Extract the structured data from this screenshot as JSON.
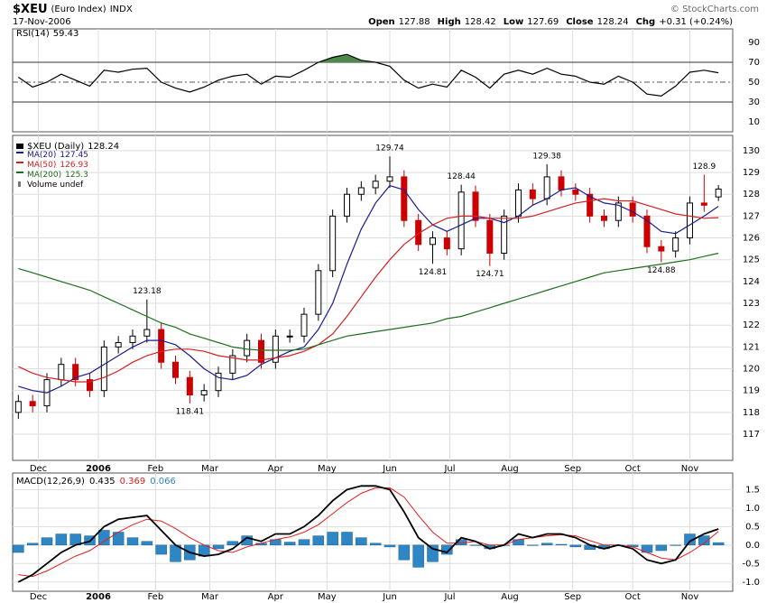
{
  "chart_data": {
    "type": "candlestick",
    "symbol": "$XEU",
    "description": "(Euro Index)",
    "exchange": "INDX",
    "date": "17-Nov-2006",
    "source": "© StockCharts.com",
    "quote_labels": [
      "Open",
      "High",
      "Low",
      "Close",
      "Chg"
    ],
    "change": "+0.31 (+0.24%)",
    "price_name": "$XEU (Daily)",
    "volume_label": "Volume undef",
    "grid": true,
    "x": [
      2,
      7,
      12,
      17,
      22,
      27,
      32,
      37,
      42,
      47,
      52,
      57,
      62,
      67,
      72,
      77,
      82,
      87,
      92,
      97,
      102,
      107,
      112,
      117,
      122,
      127,
      132,
      137,
      142,
      147,
      152,
      157,
      162,
      167,
      172,
      177,
      182,
      187,
      192,
      197,
      202,
      207,
      212,
      217,
      222,
      227,
      232,
      237,
      242,
      247
    ],
    "xlim": [
      0,
      252
    ],
    "xticks": [
      {
        "value": 9,
        "label": "Dec"
      },
      {
        "value": 30,
        "label": "2006"
      },
      {
        "value": 50,
        "label": "Feb"
      },
      {
        "value": 69,
        "label": "Mar"
      },
      {
        "value": 92,
        "label": "Apr"
      },
      {
        "value": 110,
        "label": "May"
      },
      {
        "value": 132,
        "label": "Jun"
      },
      {
        "value": 153,
        "label": "Jul"
      },
      {
        "value": 174,
        "label": "Aug"
      },
      {
        "value": 196,
        "label": "Sep"
      },
      {
        "value": 217,
        "label": "Oct"
      },
      {
        "value": 237,
        "label": "Nov"
      }
    ],
    "open": [
      118.0,
      118.5,
      118.3,
      119.5,
      120.2,
      119.5,
      119.0,
      121.0,
      121.2,
      121.5,
      121.8,
      120.3,
      119.6,
      118.8,
      119.0,
      119.8,
      120.6,
      121.3,
      120.3,
      121.5,
      121.5,
      122.5,
      124.5,
      127.0,
      128.0,
      128.3,
      128.6,
      128.8,
      126.8,
      125.7,
      126.0,
      125.5,
      128.1,
      126.8,
      125.3,
      127.0,
      128.2,
      127.8,
      128.8,
      128.2,
      128.0,
      127.0,
      126.8,
      127.6,
      127.0,
      125.6,
      125.4,
      126.0,
      127.6,
      127.88
    ],
    "high": [
      118.8,
      118.8,
      119.8,
      120.5,
      120.5,
      119.8,
      121.3,
      121.5,
      121.8,
      123.18,
      122.1,
      120.6,
      119.9,
      119.3,
      120.1,
      120.9,
      121.6,
      121.6,
      121.8,
      121.8,
      122.8,
      124.8,
      127.3,
      128.3,
      128.6,
      128.9,
      129.74,
      129.1,
      127.1,
      126.3,
      126.3,
      128.44,
      128.4,
      127.1,
      127.3,
      128.5,
      128.5,
      129.38,
      129.1,
      128.5,
      128.3,
      127.3,
      127.9,
      127.9,
      127.3,
      125.9,
      126.3,
      127.9,
      128.9,
      128.42
    ],
    "low": [
      117.7,
      118.0,
      118.0,
      119.2,
      119.2,
      118.7,
      118.7,
      120.7,
      120.9,
      121.2,
      120.0,
      119.3,
      118.41,
      118.5,
      118.7,
      119.5,
      120.3,
      120.0,
      120.0,
      121.2,
      121.2,
      122.2,
      124.2,
      126.7,
      127.7,
      128.0,
      128.3,
      126.5,
      125.4,
      124.81,
      125.2,
      125.2,
      126.5,
      124.71,
      125.0,
      126.7,
      127.5,
      127.5,
      127.9,
      127.7,
      126.7,
      126.5,
      126.5,
      126.7,
      125.3,
      124.88,
      125.1,
      125.7,
      127.2,
      127.69
    ],
    "close": [
      118.5,
      118.3,
      119.5,
      120.2,
      119.5,
      119.0,
      121.0,
      121.2,
      121.5,
      121.8,
      120.3,
      119.6,
      118.8,
      119.0,
      119.8,
      120.6,
      121.3,
      120.3,
      121.5,
      121.5,
      122.5,
      124.5,
      127.0,
      128.0,
      128.3,
      128.6,
      128.8,
      126.8,
      125.7,
      126.0,
      125.5,
      128.1,
      126.8,
      125.3,
      127.0,
      128.2,
      127.8,
      128.8,
      128.2,
      128.0,
      127.0,
      126.8,
      127.6,
      127.0,
      125.6,
      125.4,
      126.0,
      127.6,
      127.5,
      128.24
    ],
    "ylim": [
      115.8,
      130.7
    ],
    "yticks": [
      117,
      118,
      119,
      120,
      121,
      122,
      123,
      124,
      125,
      126,
      127,
      128,
      129,
      130
    ],
    "series": [
      {
        "name": "MA(20)",
        "color": "#1a1a8c",
        "values": [
          119.2,
          119.0,
          118.9,
          119.2,
          119.6,
          119.8,
          120.2,
          120.6,
          121.0,
          121.3,
          121.3,
          121.1,
          120.6,
          120.0,
          119.6,
          119.5,
          119.7,
          120.2,
          120.5,
          120.8,
          121.0,
          121.8,
          123.0,
          124.8,
          126.4,
          127.6,
          128.4,
          128.2,
          127.3,
          126.6,
          126.3,
          126.6,
          126.9,
          126.9,
          126.7,
          127.0,
          127.5,
          127.8,
          128.2,
          128.3,
          127.9,
          127.6,
          127.5,
          127.2,
          126.8,
          126.3,
          126.2,
          126.6,
          127.0,
          127.45
        ]
      },
      {
        "name": "MA(50)",
        "color": "#d42020",
        "values": [
          120.1,
          119.8,
          119.6,
          119.5,
          119.4,
          119.4,
          119.6,
          119.9,
          120.3,
          120.6,
          120.8,
          120.9,
          120.9,
          120.8,
          120.6,
          120.5,
          120.4,
          120.4,
          120.5,
          120.6,
          120.8,
          121.1,
          121.6,
          122.4,
          123.3,
          124.2,
          125.0,
          125.7,
          126.2,
          126.6,
          126.9,
          127.0,
          127.0,
          126.9,
          126.9,
          126.9,
          127.0,
          127.2,
          127.4,
          127.6,
          127.7,
          127.8,
          127.7,
          127.7,
          127.5,
          127.3,
          127.1,
          127.0,
          126.9,
          126.93
        ]
      },
      {
        "name": "MA(200)",
        "color": "#1f6e1f",
        "values": [
          124.6,
          124.4,
          124.2,
          124.0,
          123.8,
          123.6,
          123.3,
          123.0,
          122.7,
          122.4,
          122.1,
          121.9,
          121.6,
          121.4,
          121.2,
          121.0,
          120.9,
          120.85,
          120.85,
          120.85,
          120.9,
          121.1,
          121.3,
          121.5,
          121.6,
          121.7,
          121.8,
          121.9,
          122.0,
          122.1,
          122.3,
          122.4,
          122.6,
          122.8,
          123.0,
          123.2,
          123.4,
          123.6,
          123.8,
          124.0,
          124.2,
          124.4,
          124.5,
          124.6,
          124.7,
          124.8,
          124.9,
          125.0,
          125.15,
          125.3
        ]
      }
    ],
    "rsi": {
      "name": "RSI(14)",
      "color": "#000000",
      "fill": "#4a8a4a",
      "ylim": [
        0,
        100
      ],
      "yticks": [
        10,
        30,
        50,
        70,
        90
      ],
      "values": [
        55,
        45,
        50,
        58,
        52,
        46,
        62,
        60,
        63,
        64,
        50,
        44,
        40,
        45,
        52,
        56,
        58,
        48,
        56,
        55,
        62,
        70,
        75,
        78,
        72,
        70,
        66,
        52,
        44,
        48,
        45,
        62,
        55,
        44,
        58,
        62,
        58,
        64,
        58,
        56,
        50,
        48,
        56,
        50,
        38,
        36,
        46,
        60,
        62,
        59.43
      ]
    },
    "macd": {
      "name": "MACD(12,26,9)",
      "ylim": [
        -1.25,
        1.95
      ],
      "yticks": [
        {
          "value": -1,
          "label": "-1.0"
        },
        {
          "value": -0.5,
          "label": "-0.5"
        },
        {
          "value": 0,
          "label": "0.0"
        },
        {
          "value": 0.5,
          "label": "0.5"
        },
        {
          "value": 1,
          "label": "1.0"
        },
        {
          "value": 1.5,
          "label": "1.5"
        }
      ],
      "series": [
        {
          "name": "MACD",
          "color": "#000000",
          "values": [
            -1.0,
            -0.8,
            -0.5,
            -0.2,
            0.0,
            0.1,
            0.5,
            0.7,
            0.75,
            0.8,
            0.4,
            0.0,
            -0.2,
            -0.3,
            -0.25,
            -0.1,
            0.2,
            0.1,
            0.3,
            0.3,
            0.5,
            0.8,
            1.2,
            1.5,
            1.6,
            1.6,
            1.5,
            0.9,
            0.2,
            -0.1,
            -0.2,
            0.2,
            0.1,
            -0.1,
            0.0,
            0.3,
            0.2,
            0.3,
            0.3,
            0.2,
            0.0,
            -0.1,
            0.0,
            -0.1,
            -0.4,
            -0.5,
            -0.4,
            0.1,
            0.3,
            0.435
          ]
        },
        {
          "name": "Signal",
          "color": "#e02020",
          "values": [
            -0.8,
            -0.85,
            -0.7,
            -0.5,
            -0.3,
            -0.15,
            0.1,
            0.35,
            0.55,
            0.7,
            0.65,
            0.45,
            0.2,
            0.0,
            -0.15,
            -0.2,
            -0.05,
            0.05,
            0.15,
            0.22,
            0.35,
            0.55,
            0.85,
            1.15,
            1.4,
            1.55,
            1.55,
            1.3,
            0.8,
            0.35,
            0.05,
            0.05,
            0.1,
            0.0,
            0.0,
            0.15,
            0.2,
            0.25,
            0.28,
            0.25,
            0.12,
            0.0,
            0.0,
            -0.05,
            -0.2,
            -0.35,
            -0.4,
            -0.2,
            0.05,
            0.369
          ]
        },
        {
          "name": "Histogram",
          "color": "#2f86c4",
          "values": [
            -0.2,
            0.05,
            0.2,
            0.3,
            0.3,
            0.25,
            0.4,
            0.35,
            0.2,
            0.1,
            -0.25,
            -0.45,
            -0.4,
            -0.3,
            -0.1,
            0.1,
            0.25,
            0.05,
            0.15,
            0.08,
            0.15,
            0.25,
            0.35,
            0.35,
            0.2,
            0.05,
            -0.05,
            -0.4,
            -0.6,
            -0.45,
            -0.25,
            0.15,
            0.0,
            -0.1,
            0.0,
            0.15,
            0.0,
            0.05,
            0.02,
            -0.05,
            -0.12,
            -0.1,
            0.0,
            -0.05,
            -0.2,
            -0.15,
            0.0,
            0.3,
            0.25,
            0.066
          ]
        }
      ]
    }
  }
}
